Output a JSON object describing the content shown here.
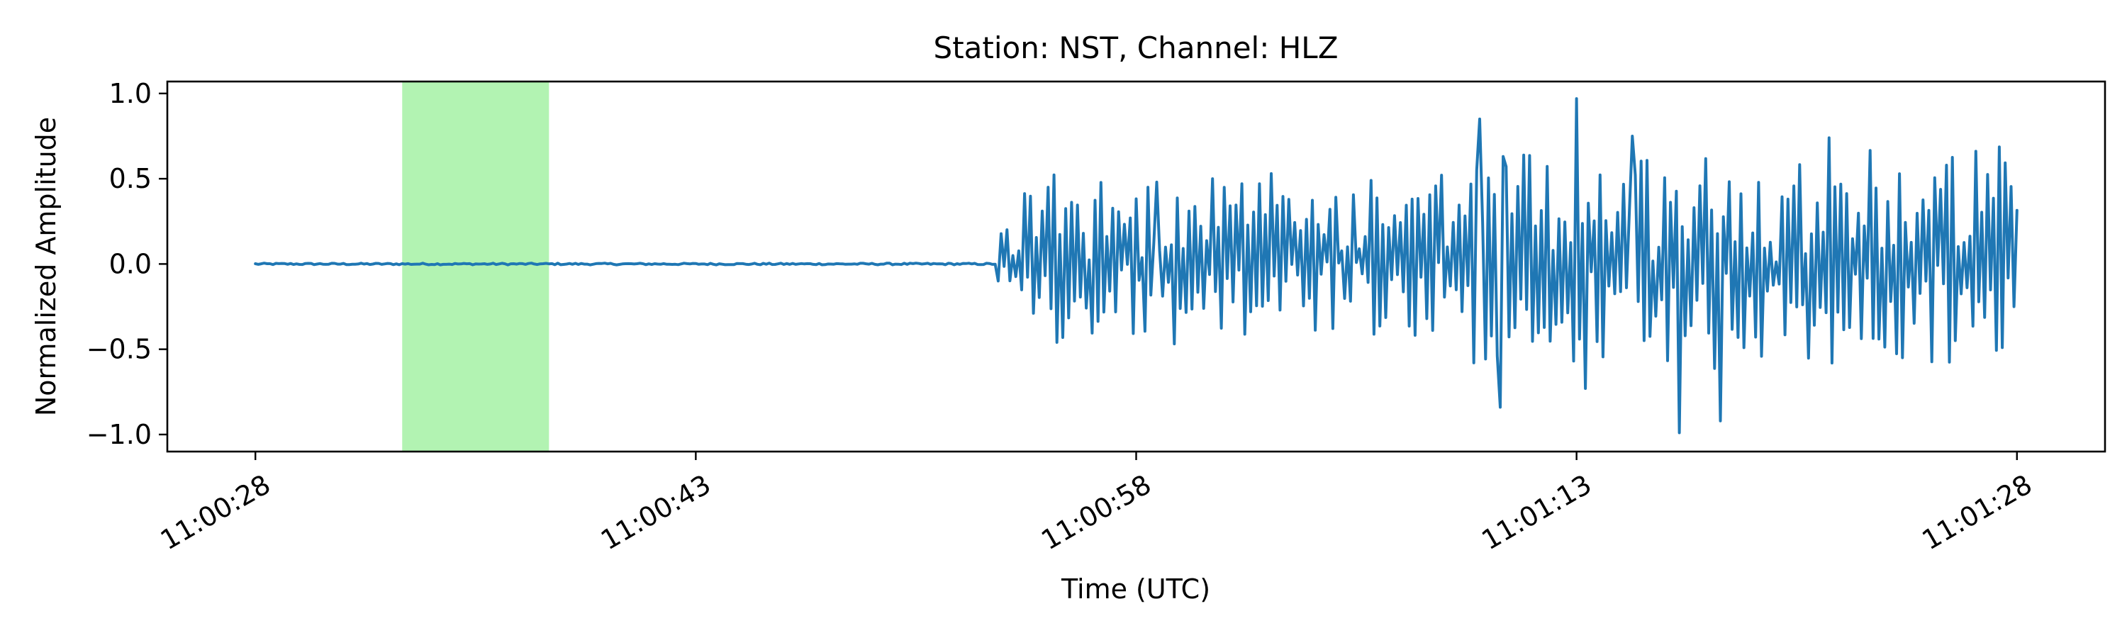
{
  "chart_data": {
    "type": "line",
    "title": "Station: NST, Channel: HLZ",
    "xlabel": "Time (UTC)",
    "ylabel": "Normalized Amplitude",
    "x_unit": "seconds",
    "xlim": [
      "11:00:25",
      "11:01:31"
    ],
    "ylim": [
      -1.1,
      1.07
    ],
    "yticks": [
      1.0,
      0.5,
      0.0,
      -0.5,
      -1.0
    ],
    "ytick_labels": [
      "1.0",
      "0.5",
      "0.0",
      "−0.5",
      "−1.0"
    ],
    "xticks": [
      "11:00:28",
      "11:00:43",
      "11:00:58",
      "11:01:13",
      "11:01:28"
    ],
    "grid": false,
    "highlight": {
      "start": "11:00:33",
      "end": "11:00:38",
      "color": "#b2f3b2"
    },
    "series": [
      {
        "color": "#1f77b4",
        "x_start": "11:00:28",
        "x_end": "11:01:28",
        "quiet_until": "11:00:53",
        "onset": "11:00:53.2",
        "peaks": [
          {
            "x": "11:00:55.0",
            "y": 0.45
          },
          {
            "x": "11:00:55.3",
            "y": -0.46
          },
          {
            "x": "11:00:58.7",
            "y": 0.48
          },
          {
            "x": "11:01:09.7",
            "y": 0.85
          },
          {
            "x": "11:01:09.5",
            "y": -0.58
          },
          {
            "x": "11:01:10.5",
            "y": 0.63
          },
          {
            "x": "11:01:10.4",
            "y": -0.84
          },
          {
            "x": "11:01:13.0",
            "y": 0.97
          },
          {
            "x": "11:01:13.3",
            "y": -0.73
          },
          {
            "x": "11:01:14.9",
            "y": 0.75
          },
          {
            "x": "11:01:16.5",
            "y": -0.99
          },
          {
            "x": "11:01:17.9",
            "y": -0.92
          },
          {
            "x": "11:01:21.6",
            "y": 0.74
          },
          {
            "x": "11:01:27.5",
            "y": -0.49
          }
        ]
      }
    ]
  }
}
